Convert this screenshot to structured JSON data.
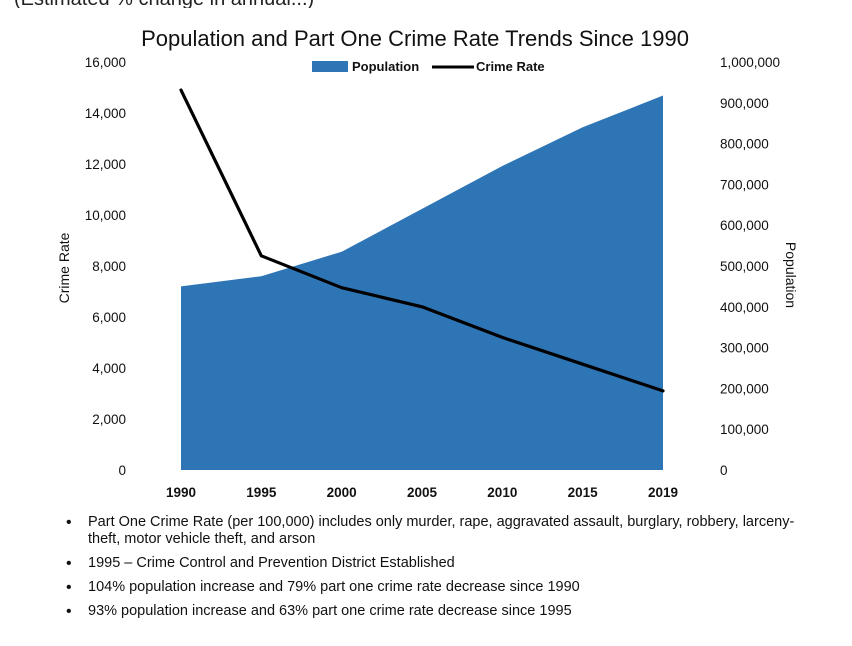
{
  "top_partial_text": "(Estimated % change in annual...)",
  "chart_data": {
    "type": "area+line",
    "title": "Population and Part One Crime Rate Trends Since 1990",
    "categories": [
      "1990",
      "1995",
      "2000",
      "2005",
      "2010",
      "2015",
      "2019"
    ],
    "series": [
      {
        "name": "Population",
        "kind": "area",
        "axis": "right",
        "color": "#2e75b6",
        "values": [
          450000,
          475000,
          535000,
          640000,
          745000,
          840000,
          918000
        ]
      },
      {
        "name": "Crime Rate",
        "kind": "line",
        "axis": "left",
        "color": "#000000",
        "values": [
          14900,
          8400,
          7150,
          6400,
          5200,
          4150,
          3100
        ]
      }
    ],
    "ylabel": "Crime Rate",
    "y2label": "Population",
    "ylim": [
      0,
      16000
    ],
    "y2lim": [
      0,
      1000000
    ],
    "yticks": [
      "0",
      "2,000",
      "4,000",
      "6,000",
      "8,000",
      "10,000",
      "12,000",
      "14,000",
      "16,000"
    ],
    "y2ticks": [
      "0",
      "100,000",
      "200,000",
      "300,000",
      "400,000",
      "500,000",
      "600,000",
      "700,000",
      "800,000",
      "900,000",
      "1,000,000"
    ],
    "legend": [
      {
        "label": "Population",
        "kind": "area",
        "color": "#2e75b6"
      },
      {
        "label": "Crime Rate",
        "kind": "line",
        "color": "#000000"
      }
    ],
    "legend_position": "top-center"
  },
  "notes": [
    "Part One Crime Rate (per 100,000) includes only murder, rape, aggravated  assault, burglary, robbery, larceny-theft, motor vehicle theft, and arson",
    "1995 – Crime Control and Prevention District Established",
    "104% population increase and 79% part one crime rate decrease since 1990",
    "93% population increase and 63% part one crime rate decrease since 1995"
  ]
}
